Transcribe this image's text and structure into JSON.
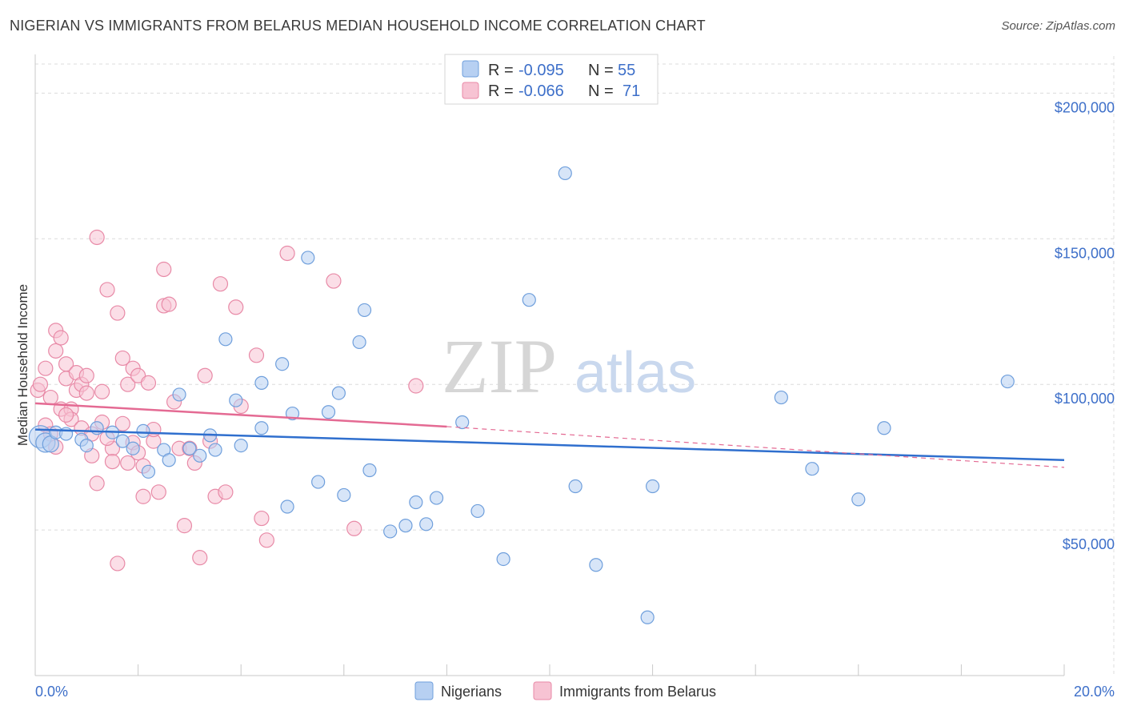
{
  "title": "NIGERIAN VS IMMIGRANTS FROM BELARUS MEDIAN HOUSEHOLD INCOME CORRELATION CHART",
  "source": "Source: ZipAtlas.com",
  "watermark": {
    "zip": "ZIP",
    "atlas": "atlas"
  },
  "colors": {
    "blue_fill": "#b7d0f2",
    "blue_stroke": "#6f9fdc",
    "blue_line": "#2f6fce",
    "pink_fill": "#f7c3d3",
    "pink_stroke": "#e88aa7",
    "pink_line": "#e46a93",
    "accent_text": "#3d6fc9"
  },
  "legend_stats": [
    {
      "r_label": "R = ",
      "r_value": "-0.095",
      "n_label": "N = ",
      "n_value": "55"
    },
    {
      "r_label": "R = ",
      "r_value": "-0.066",
      "n_label": "N = ",
      "n_value": "71"
    }
  ],
  "chart_data": {
    "type": "scatter",
    "xlabel": "",
    "ylabel": "Median Household Income",
    "xlim": [
      0,
      20
    ],
    "ylim": [
      0,
      210000
    ],
    "x_tick_labels": [
      "0.0%",
      "20.0%"
    ],
    "y_ticks": [
      {
        "value": 50000,
        "label": "$50,000"
      },
      {
        "value": 100000,
        "label": "$100,000"
      },
      {
        "value": 150000,
        "label": "$150,000"
      },
      {
        "value": 200000,
        "label": "$200,000"
      }
    ],
    "grid": true,
    "legend_position": "bottom",
    "series": [
      {
        "name": "Nigerians",
        "color": "blue",
        "r": -0.095,
        "n": 55,
        "trend": {
          "x0": 0.0,
          "y0": 84500,
          "x1": 20.0,
          "y1": 74000,
          "style": "solid"
        },
        "points": [
          [
            0.1,
            82000,
            14
          ],
          [
            0.2,
            80000,
            12
          ],
          [
            0.3,
            79500,
            10
          ],
          [
            0.4,
            83500,
            8
          ],
          [
            0.6,
            83000,
            8
          ],
          [
            0.9,
            81000,
            8
          ],
          [
            1.0,
            79000,
            8
          ],
          [
            1.2,
            85000,
            8
          ],
          [
            1.5,
            83500,
            8
          ],
          [
            1.7,
            80500,
            8
          ],
          [
            1.9,
            78000,
            8
          ],
          [
            2.1,
            84000,
            8
          ],
          [
            2.2,
            70000,
            8
          ],
          [
            2.5,
            77500,
            8
          ],
          [
            2.6,
            74000,
            8
          ],
          [
            2.8,
            96500,
            8
          ],
          [
            3.0,
            78000,
            8
          ],
          [
            3.2,
            75500,
            8
          ],
          [
            3.4,
            82500,
            8
          ],
          [
            3.5,
            77500,
            8
          ],
          [
            3.7,
            115500,
            8
          ],
          [
            3.9,
            94500,
            8
          ],
          [
            4.0,
            79000,
            8
          ],
          [
            4.4,
            100500,
            8
          ],
          [
            4.4,
            85000,
            8
          ],
          [
            4.8,
            107000,
            8
          ],
          [
            4.9,
            58000,
            8
          ],
          [
            5.0,
            90000,
            8
          ],
          [
            5.3,
            143500,
            8
          ],
          [
            5.5,
            66500,
            8
          ],
          [
            5.7,
            90500,
            8
          ],
          [
            5.9,
            97000,
            8
          ],
          [
            6.0,
            62000,
            8
          ],
          [
            6.3,
            114500,
            8
          ],
          [
            6.4,
            125500,
            8
          ],
          [
            6.5,
            70500,
            8
          ],
          [
            6.9,
            49500,
            8
          ],
          [
            7.2,
            51500,
            8
          ],
          [
            7.4,
            59500,
            8
          ],
          [
            7.6,
            52000,
            8
          ],
          [
            7.8,
            61000,
            8
          ],
          [
            8.3,
            87000,
            8
          ],
          [
            8.6,
            56500,
            8
          ],
          [
            9.1,
            40000,
            8
          ],
          [
            9.6,
            129000,
            8
          ],
          [
            10.3,
            172500,
            8
          ],
          [
            10.5,
            65000,
            8
          ],
          [
            10.9,
            38000,
            8
          ],
          [
            11.9,
            20000,
            8
          ],
          [
            12.0,
            65000,
            8
          ],
          [
            14.5,
            95500,
            8
          ],
          [
            15.1,
            71000,
            8
          ],
          [
            16.0,
            60500,
            8
          ],
          [
            16.5,
            85000,
            8
          ],
          [
            18.9,
            101000,
            8
          ]
        ]
      },
      {
        "name": "Immigrants from Belarus",
        "color": "pink",
        "r": -0.066,
        "n": 71,
        "trend": {
          "x0": 0.0,
          "y0": 93500,
          "x1": 8.0,
          "y1": 85500,
          "style": "solid",
          "ext_x1": 20.0,
          "ext_y1": 71500
        },
        "points": [
          [
            0.05,
            98000,
            9
          ],
          [
            0.1,
            100000,
            9
          ],
          [
            0.2,
            105500,
            9
          ],
          [
            0.2,
            86000,
            9
          ],
          [
            0.3,
            83000,
            9
          ],
          [
            0.4,
            111500,
            9
          ],
          [
            0.4,
            118500,
            9
          ],
          [
            0.5,
            116000,
            9
          ],
          [
            0.5,
            91500,
            9
          ],
          [
            0.6,
            107000,
            9
          ],
          [
            0.6,
            102000,
            9
          ],
          [
            0.7,
            91500,
            9
          ],
          [
            0.7,
            88000,
            9
          ],
          [
            0.8,
            104000,
            9
          ],
          [
            0.8,
            98000,
            9
          ],
          [
            0.9,
            100000,
            9
          ],
          [
            0.9,
            85000,
            9
          ],
          [
            1.0,
            103000,
            9
          ],
          [
            1.0,
            97000,
            9
          ],
          [
            1.1,
            75500,
            9
          ],
          [
            1.2,
            150500,
            9
          ],
          [
            1.2,
            66000,
            9
          ],
          [
            1.3,
            87000,
            9
          ],
          [
            1.3,
            97500,
            9
          ],
          [
            1.4,
            132500,
            9
          ],
          [
            1.5,
            78000,
            9
          ],
          [
            1.5,
            73500,
            9
          ],
          [
            1.6,
            124500,
            9
          ],
          [
            1.6,
            38500,
            9
          ],
          [
            1.7,
            109000,
            9
          ],
          [
            1.7,
            86500,
            9
          ],
          [
            1.8,
            100000,
            9
          ],
          [
            1.8,
            73000,
            9
          ],
          [
            1.9,
            105500,
            9
          ],
          [
            1.9,
            80000,
            9
          ],
          [
            2.0,
            103000,
            9
          ],
          [
            2.0,
            76500,
            9
          ],
          [
            2.1,
            72000,
            9
          ],
          [
            2.1,
            61500,
            9
          ],
          [
            2.2,
            100500,
            9
          ],
          [
            2.3,
            80500,
            9
          ],
          [
            2.4,
            63000,
            9
          ],
          [
            2.5,
            127000,
            9
          ],
          [
            2.5,
            139500,
            9
          ],
          [
            2.6,
            127500,
            9
          ],
          [
            2.7,
            94000,
            9
          ],
          [
            2.8,
            78000,
            9
          ],
          [
            2.9,
            51500,
            9
          ],
          [
            3.0,
            78000,
            9
          ],
          [
            3.1,
            73000,
            9
          ],
          [
            3.2,
            40500,
            9
          ],
          [
            3.3,
            103000,
            9
          ],
          [
            3.4,
            80500,
            9
          ],
          [
            3.5,
            61500,
            9
          ],
          [
            3.6,
            134500,
            9
          ],
          [
            3.7,
            63000,
            9
          ],
          [
            3.9,
            126500,
            9
          ],
          [
            4.0,
            92500,
            9
          ],
          [
            4.3,
            110000,
            9
          ],
          [
            4.4,
            54000,
            9
          ],
          [
            4.5,
            46500,
            9
          ],
          [
            4.9,
            145000,
            9
          ],
          [
            5.8,
            135500,
            9
          ],
          [
            6.2,
            50500,
            9
          ],
          [
            7.4,
            99500,
            9
          ],
          [
            0.3,
            95500,
            9
          ],
          [
            1.1,
            83000,
            9
          ],
          [
            2.3,
            84500,
            9
          ],
          [
            0.6,
            89500,
            9
          ],
          [
            1.4,
            81500,
            9
          ],
          [
            0.4,
            78500,
            9
          ]
        ]
      }
    ]
  }
}
